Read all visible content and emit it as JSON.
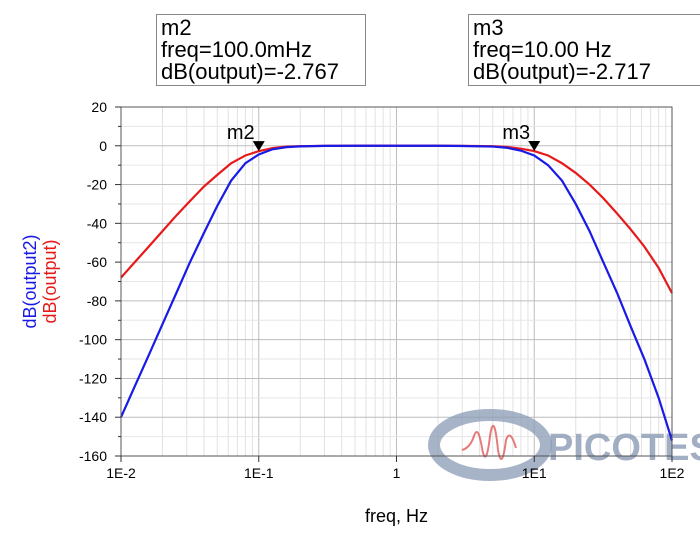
{
  "chart_data": {
    "type": "line",
    "xscale": "log",
    "xlabel": "freq, Hz",
    "ylabels": [
      {
        "text": "dB(output2)",
        "color": "#1a1ae6"
      },
      {
        "text": "dB(output)",
        "color": "#e61a1a"
      }
    ],
    "xlim": [
      0.01,
      100
    ],
    "ylim": [
      -160,
      20
    ],
    "x_tick_values": [
      0.01,
      0.1,
      1,
      10,
      100
    ],
    "x_tick_labels": [
      "1E-2",
      "1E-1",
      "1",
      "1E1",
      "1E2"
    ],
    "y_ticks": [
      20,
      0,
      -20,
      -40,
      -60,
      -80,
      -100,
      -120,
      -140,
      -160
    ],
    "grid": true,
    "series": [
      {
        "name": "dB(output)",
        "color": "#e61a1a",
        "x": [
          0.01,
          0.0126,
          0.0159,
          0.02,
          0.0252,
          0.0317,
          0.04,
          0.05,
          0.063,
          0.08,
          0.1,
          0.126,
          0.159,
          0.2,
          0.3,
          0.5,
          1,
          2,
          3,
          5,
          6.3,
          8,
          10,
          12.6,
          15.9,
          20,
          25.2,
          31.7,
          40,
          50,
          63,
          80,
          100
        ],
        "y": [
          -68,
          -60,
          -52,
          -44,
          -36,
          -28.5,
          -21,
          -15,
          -9,
          -5,
          -2.767,
          -1.2,
          -0.4,
          -0.2,
          -0.05,
          0,
          0,
          0,
          -0.05,
          -0.2,
          -0.6,
          -1.5,
          -2.717,
          -5,
          -9,
          -14,
          -20,
          -27,
          -35,
          -43,
          -52,
          -63,
          -76
        ]
      },
      {
        "name": "dB(output2)",
        "color": "#1a1ae6",
        "x": [
          0.01,
          0.0126,
          0.0159,
          0.02,
          0.0252,
          0.0317,
          0.04,
          0.05,
          0.063,
          0.08,
          0.1,
          0.126,
          0.159,
          0.2,
          0.3,
          0.5,
          1,
          2,
          3,
          5,
          6.3,
          8,
          10,
          12.6,
          15.9,
          20,
          25.2,
          31.7,
          40,
          50,
          63,
          80,
          100
        ],
        "y": [
          -140,
          -124,
          -108,
          -92,
          -76,
          -60,
          -45,
          -31,
          -18,
          -9,
          -4.5,
          -1.8,
          -0.7,
          -0.3,
          -0.05,
          0,
          0,
          0,
          -0.1,
          -0.4,
          -1,
          -2.5,
          -5,
          -10,
          -18,
          -30,
          -44,
          -60,
          -76,
          -93,
          -110,
          -130,
          -152
        ]
      }
    ]
  },
  "markers": [
    {
      "id": "m2",
      "label": "m2",
      "freq_text": "freq=100.0mHz",
      "value_text": "dB(output)=-2.767",
      "x": 0.1,
      "y": -2.767
    },
    {
      "id": "m3",
      "label": "m3",
      "freq_text": "freq=10.00 Hz",
      "value_text": "dB(output)=-2.717",
      "x": 10,
      "y": -2.717
    }
  ],
  "watermark": {
    "text": "PICOTEST",
    "color": "#8a9bb5"
  }
}
